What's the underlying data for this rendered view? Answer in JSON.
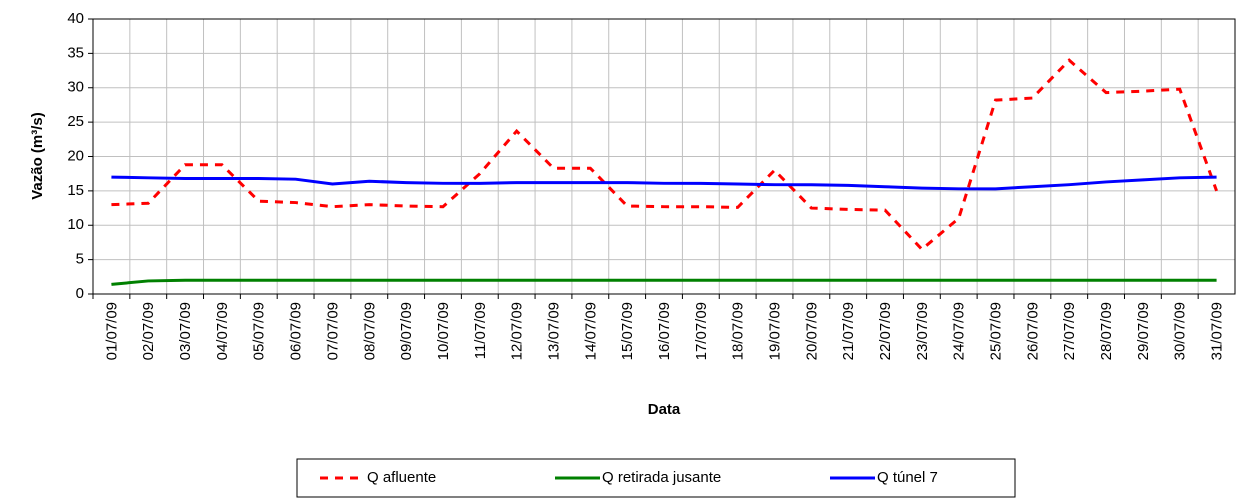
{
  "chart_data": {
    "type": "line",
    "x_label": "Data",
    "y_label": "Vazão (m³/s)",
    "categories": [
      "01/07/09",
      "02/07/09",
      "03/07/09",
      "04/07/09",
      "05/07/09",
      "06/07/09",
      "07/07/09",
      "08/07/09",
      "09/07/09",
      "10/07/09",
      "11/07/09",
      "12/07/09",
      "13/07/09",
      "14/07/09",
      "15/07/09",
      "16/07/09",
      "17/07/09",
      "18/07/09",
      "19/07/09",
      "20/07/09",
      "21/07/09",
      "22/07/09",
      "23/07/09",
      "24/07/09",
      "25/07/09",
      "26/07/09",
      "27/07/09",
      "28/07/09",
      "29/07/09",
      "30/07/09",
      "31/07/09"
    ],
    "series": [
      {
        "name": "Q afluente",
        "color": "#ff0000",
        "style": "dashed",
        "values": [
          13,
          13.2,
          18.8,
          18.8,
          13.5,
          13.3,
          12.7,
          13,
          12.8,
          12.7,
          17.5,
          23.7,
          18.3,
          18.3,
          12.8,
          12.7,
          12.7,
          12.6,
          18,
          12.5,
          12.3,
          12.2,
          6.5,
          11,
          28.2,
          28.5,
          34,
          29.3,
          29.5,
          29.8,
          15
        ]
      },
      {
        "name": "Q retirada jusante",
        "color": "#008000",
        "style": "solid",
        "values": [
          1.4,
          1.9,
          2,
          2,
          2,
          2,
          2,
          2,
          2,
          2,
          2,
          2,
          2,
          2,
          2,
          2,
          2,
          2,
          2,
          2,
          2,
          2,
          2,
          2,
          2,
          2,
          2,
          2,
          2,
          2,
          2
        ]
      },
      {
        "name": "Q túnel 7",
        "color": "#0000ff",
        "style": "solid",
        "values": [
          17,
          16.9,
          16.8,
          16.8,
          16.8,
          16.7,
          16,
          16.4,
          16.2,
          16.1,
          16.1,
          16.2,
          16.2,
          16.2,
          16.2,
          16.1,
          16.1,
          16,
          15.9,
          15.9,
          15.8,
          15.6,
          15.4,
          15.3,
          15.3,
          15.6,
          15.9,
          16.3,
          16.6,
          16.9,
          17
        ]
      }
    ],
    "ylim": [
      0,
      40
    ],
    "yticks": [
      0,
      5,
      10,
      15,
      20,
      25,
      30,
      35,
      40
    ],
    "grid": true,
    "legend": "bottom"
  }
}
